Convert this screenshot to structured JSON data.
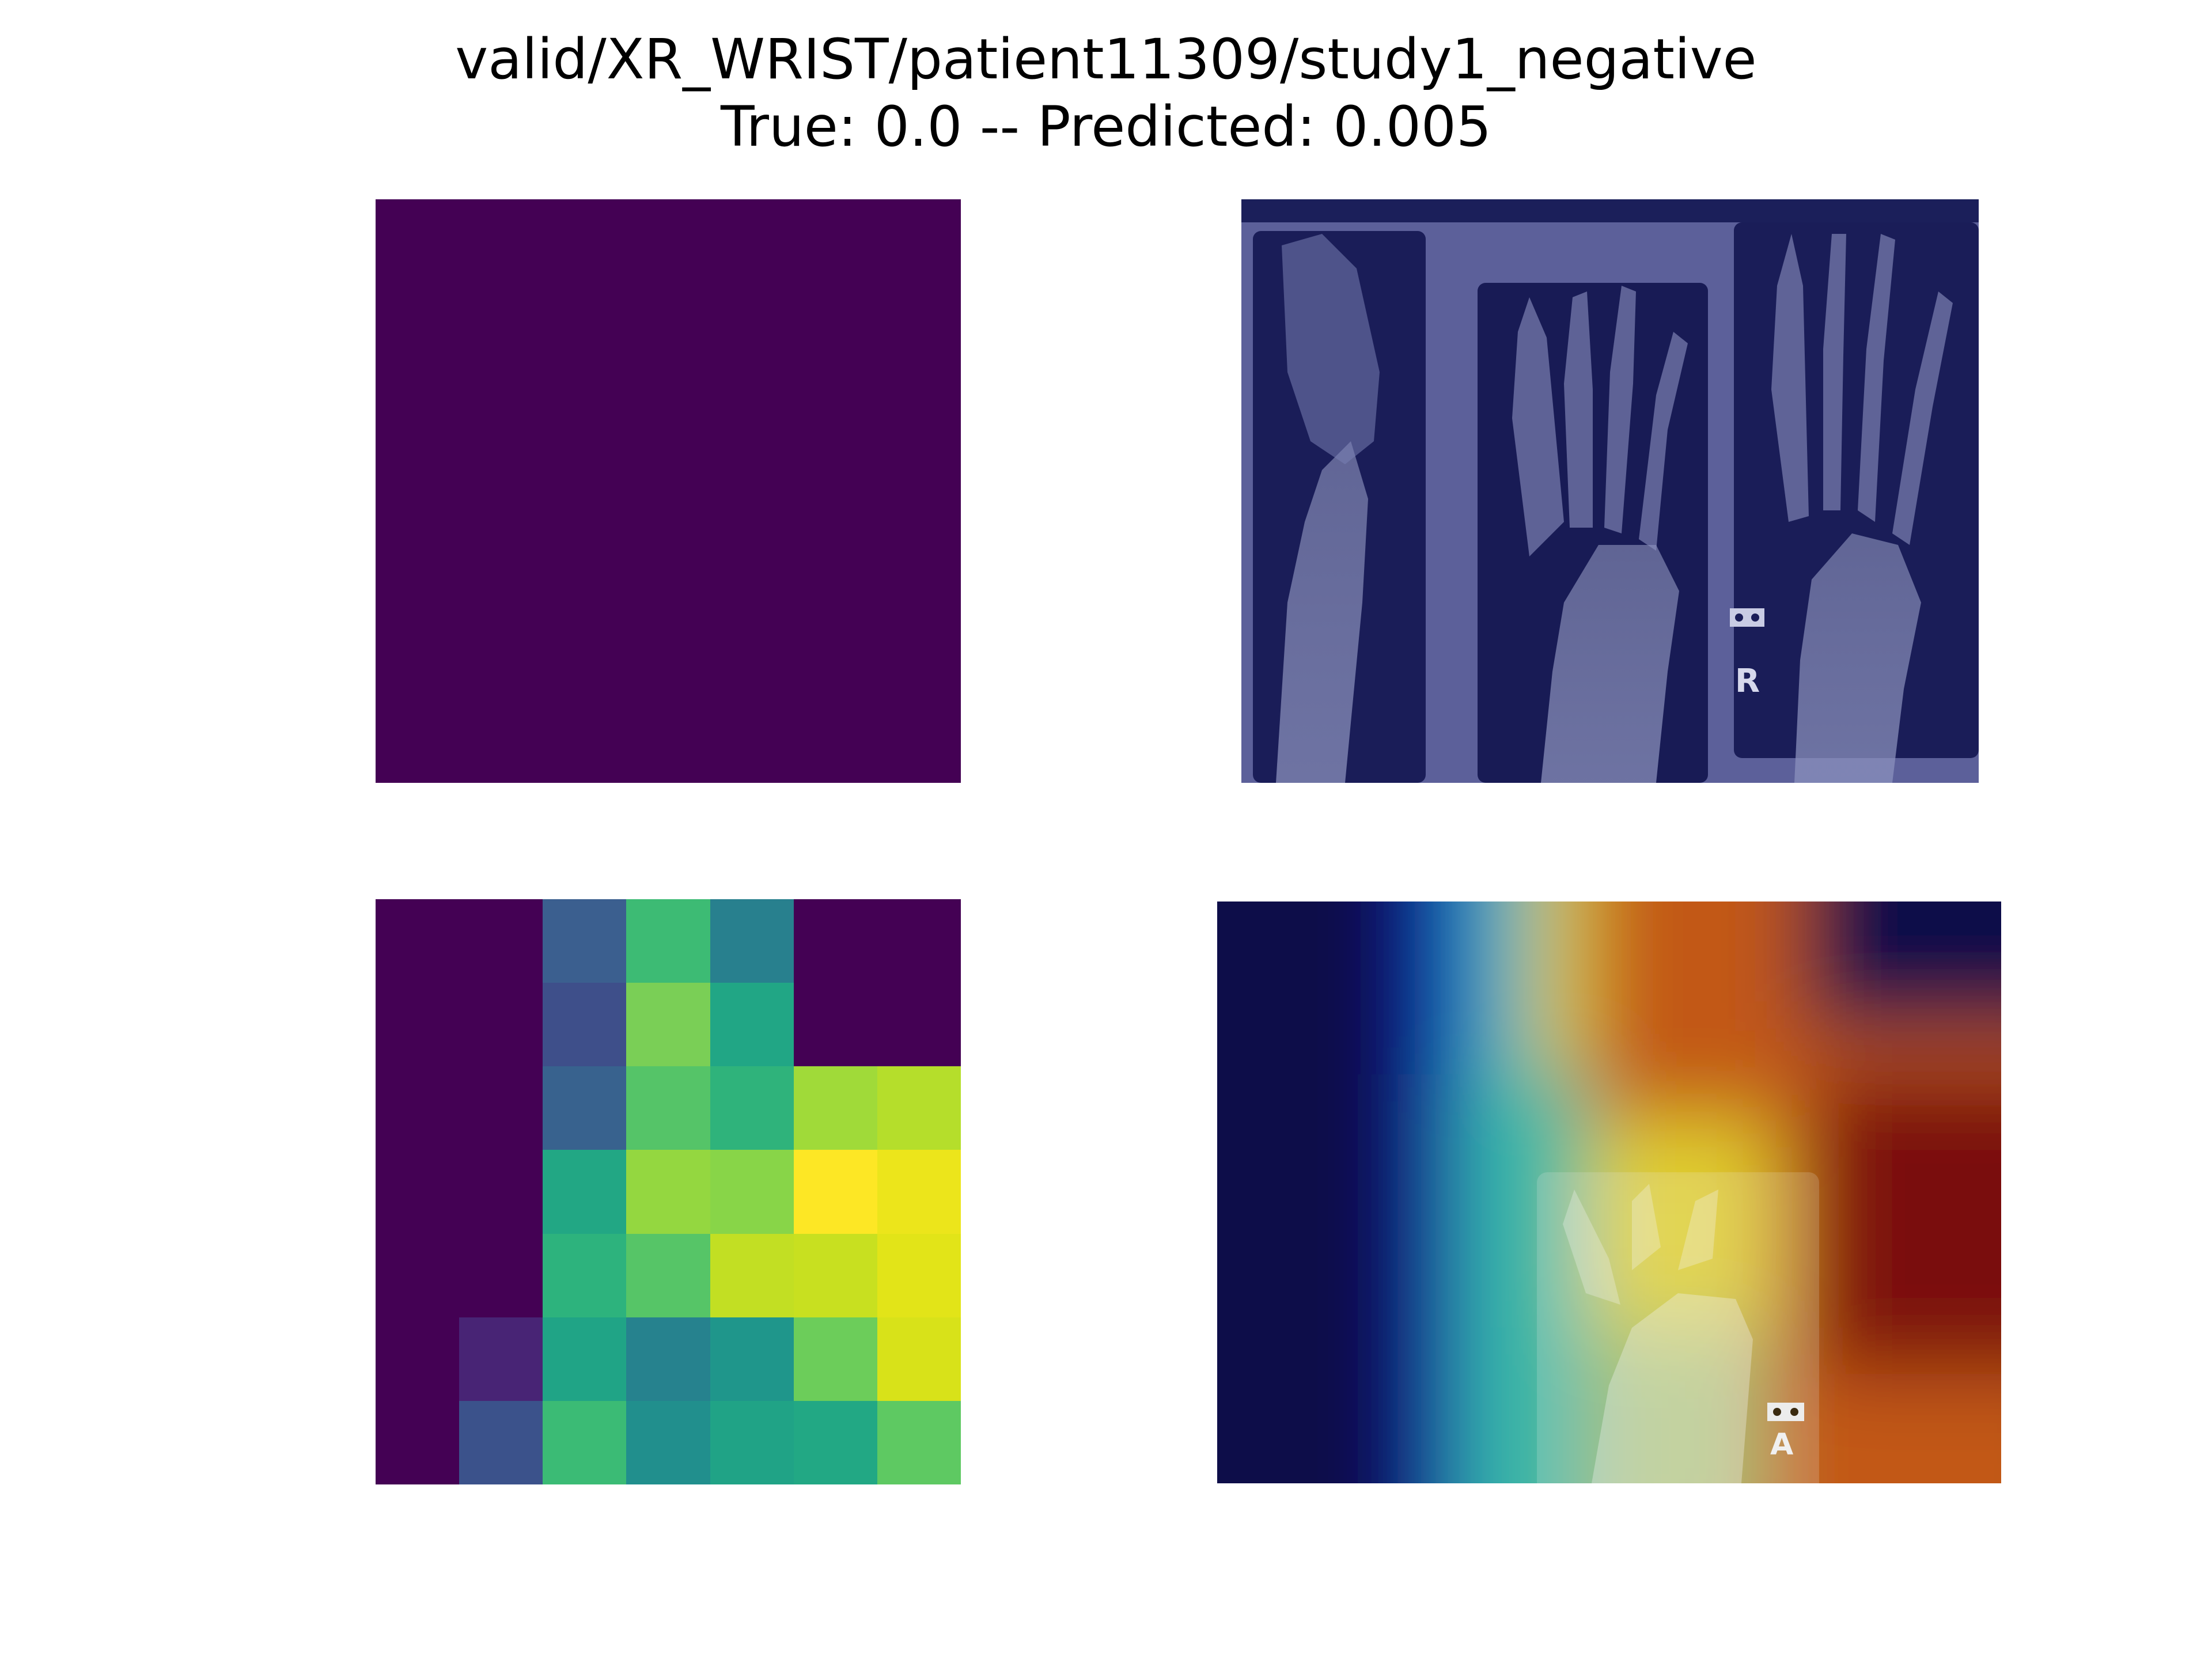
{
  "figure": {
    "title_line_1": "valid/XR_WRIST/patient11309/study1_negative",
    "title_line_2": "True: 0.0 -- Predicted: 0.005"
  },
  "panels": {
    "top_left": {
      "fill_color": "#440154"
    },
    "top_right": {
      "tint_color": "#1a1e5e",
      "marker_text": "R"
    },
    "bottom_left": {
      "colormap": "viridis",
      "rows": 7,
      "cols": 7,
      "colors": [
        [
          "#440154",
          "#440154",
          "#3b5f8f",
          "#3dbb74",
          "#28808e",
          "#440154",
          "#440154"
        ],
        [
          "#440154",
          "#440154",
          "#3e4f8a",
          "#7acf56",
          "#21a685",
          "#440154",
          "#440154"
        ],
        [
          "#440154",
          "#440154",
          "#38628e",
          "#55c468",
          "#2fb37b",
          "#a0da39",
          "#b5de2b"
        ],
        [
          "#440154",
          "#440154",
          "#22a784",
          "#94d740",
          "#88d548",
          "#fde725",
          "#ece51b"
        ],
        [
          "#440154",
          "#440154",
          "#2db37d",
          "#56c567",
          "#c2df23",
          "#c8e020",
          "#e2e418"
        ],
        [
          "#440154",
          "#482475",
          "#20a486",
          "#26828e",
          "#1f968b",
          "#6ccd5a",
          "#d8e219"
        ],
        [
          "#440154",
          "#3b528b",
          "#3bbb75",
          "#218f8d",
          "#20a386",
          "#22a884",
          "#5ec962"
        ]
      ]
    },
    "bottom_right": {
      "colormap": "jet",
      "marker_text": "A"
    }
  }
}
